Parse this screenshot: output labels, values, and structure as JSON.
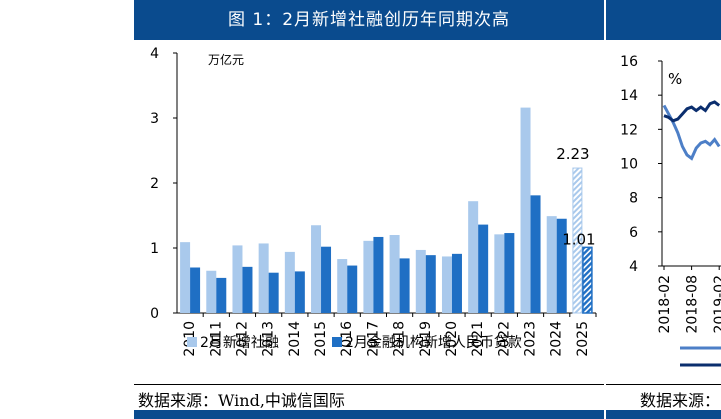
{
  "left_panel": {
    "title": "图 1：2月新增社融创历年同期次高",
    "source": "数据来源：Wind,中诚信国际"
  },
  "right_panel": {
    "source": "数据来源："
  },
  "colors": {
    "header": "#0a4b8e",
    "series_1": "#a9c9ec",
    "series_2": "#1f6fc4",
    "right_line_1": "#4d7fc7",
    "right_line_2": "#0b2e6e"
  },
  "chart_data": [
    {
      "type": "bar",
      "title": "图 1：2月新增社融创历年同期次高",
      "unit_label": "万亿元",
      "categories": [
        "2010",
        "2011",
        "2012",
        "2013",
        "2014",
        "2015",
        "2016",
        "2017",
        "2018",
        "2019",
        "2020",
        "2021",
        "2022",
        "2023",
        "2024",
        "2025"
      ],
      "series": [
        {
          "name": "2月新增社融",
          "values": [
            1.09,
            0.65,
            1.04,
            1.07,
            0.94,
            1.35,
            0.83,
            1.11,
            1.2,
            0.97,
            0.87,
            1.72,
            1.21,
            3.16,
            1.49,
            2.23
          ]
        },
        {
          "name": "2月金融机构新增人民币贷款",
          "values": [
            0.7,
            0.54,
            0.71,
            0.62,
            0.64,
            1.02,
            0.73,
            1.17,
            0.84,
            0.89,
            0.91,
            1.36,
            1.23,
            1.81,
            1.45,
            1.01
          ]
        }
      ],
      "data_labels": [
        "2.23",
        "1.01"
      ],
      "ylim": [
        0,
        4
      ],
      "yticks": [
        "0",
        "1",
        "2",
        "3",
        "4"
      ],
      "legend_position": "bottom",
      "grid": false
    },
    {
      "type": "line",
      "unit_label": "%",
      "x_ticks": [
        "2018-02",
        "2018-08",
        "2019-02"
      ],
      "yticks": [
        "4",
        "6",
        "8",
        "10",
        "12",
        "14",
        "16"
      ],
      "ylim": [
        4,
        16
      ],
      "grid": false,
      "series": [
        {
          "name": "",
          "points": [
            [
              "2018-02",
              13.4
            ],
            [
              "2018-03",
              12.9
            ],
            [
              "2018-04",
              12.4
            ],
            [
              "2018-05",
              11.8
            ],
            [
              "2018-06",
              11.0
            ],
            [
              "2018-07",
              10.5
            ],
            [
              "2018-08",
              10.3
            ],
            [
              "2018-09",
              10.9
            ],
            [
              "2018-10",
              11.2
            ],
            [
              "2018-11",
              11.3
            ],
            [
              "2018-12",
              11.1
            ],
            [
              "2019-01",
              11.4
            ],
            [
              "2019-02",
              11.0
            ]
          ]
        },
        {
          "name": "",
          "points": [
            [
              "2018-02",
              12.8
            ],
            [
              "2018-03",
              12.7
            ],
            [
              "2018-04",
              12.5
            ],
            [
              "2018-05",
              12.6
            ],
            [
              "2018-06",
              12.9
            ],
            [
              "2018-07",
              13.2
            ],
            [
              "2018-08",
              13.3
            ],
            [
              "2018-09",
              13.1
            ],
            [
              "2018-10",
              13.3
            ],
            [
              "2018-11",
              13.1
            ],
            [
              "2018-12",
              13.5
            ],
            [
              "2019-01",
              13.6
            ],
            [
              "2019-02",
              13.4
            ]
          ]
        }
      ]
    }
  ]
}
